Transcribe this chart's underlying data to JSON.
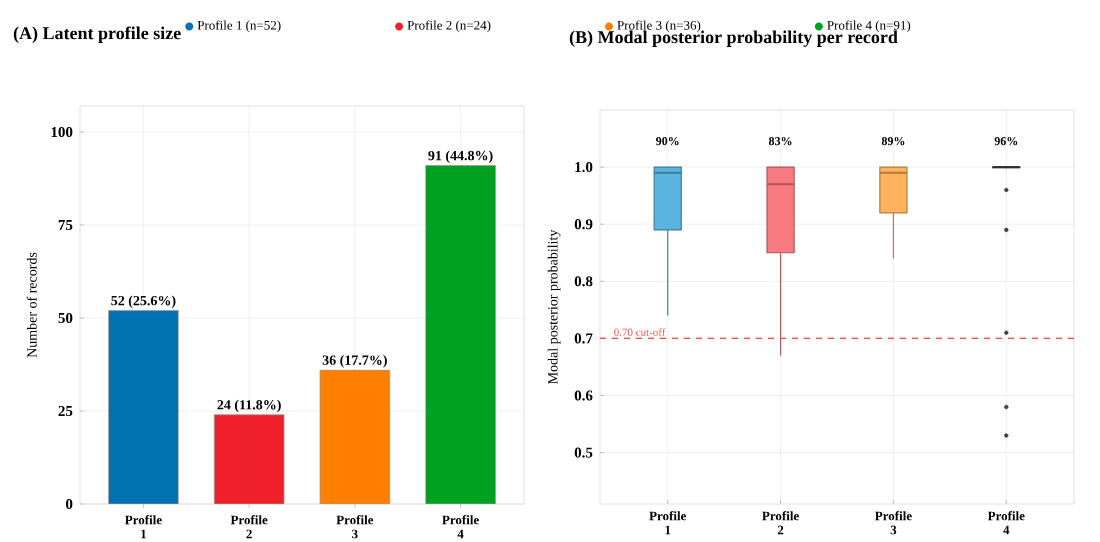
{
  "chart_data": [
    {
      "type": "bar",
      "title": "(A) Latent profile size",
      "ylabel": "Number of records",
      "categories": [
        "Profile 1",
        "Profile 2",
        "Profile 3",
        "Profile 4"
      ],
      "series": [
        {
          "name": "Profile 1 (n=52)",
          "color": "#0072b2",
          "values": [
            52,
            null,
            null,
            null
          ],
          "value_labels": [
            "52 (25.6%)",
            null,
            null,
            null
          ]
        },
        {
          "name": "Profile 2 (n=24)",
          "color": "#f0202a",
          "values": [
            null,
            24,
            null,
            null
          ],
          "value_labels": [
            null,
            "24 (11.8%)",
            null,
            null
          ]
        },
        {
          "name": "Profile 3 (n=36)",
          "color": "#ff8000",
          "values": [
            null,
            null,
            36,
            null
          ],
          "value_labels": [
            null,
            null,
            "36 (17.7%)",
            null
          ]
        },
        {
          "name": "Profile 4 (n=91)",
          "color": "#00a020",
          "values": [
            null,
            null,
            null,
            91
          ],
          "value_labels": [
            null,
            null,
            null,
            "91 (44.8%)"
          ]
        }
      ],
      "ylim": [
        0,
        107
      ],
      "yticks": [
        0,
        25,
        50,
        75,
        100
      ],
      "grid": true,
      "legend": "top"
    },
    {
      "type": "box",
      "title": "(B) Modal posterior probability per record",
      "ylabel": "Modal posterior probability",
      "categories": [
        "Profile 1",
        "Profile 2",
        "Profile 3",
        "Profile 4"
      ],
      "colors": [
        "#5ab4e0",
        "#f77b80",
        "#ffb35c",
        "#404040"
      ],
      "boxes": [
        {
          "low": 0.74,
          "q1": 0.89,
          "median": 0.99,
          "q3": 1.0,
          "high": 1.0
        },
        {
          "low": 0.67,
          "q1": 0.85,
          "median": 0.97,
          "q3": 1.0,
          "high": 1.0
        },
        {
          "low": 0.84,
          "q1": 0.92,
          "median": 0.99,
          "q3": 1.0,
          "high": 1.0
        },
        {
          "low": 0.998,
          "q1": 0.999,
          "median": 1.0,
          "q3": 1.0,
          "high": 1.0,
          "outliers": [
            0.53,
            0.58,
            0.71,
            0.89,
            0.96
          ]
        }
      ],
      "ylim": [
        0.41,
        1.1
      ],
      "yticks": [
        0.5,
        0.6,
        0.7,
        0.8,
        0.9,
        {
          "value": 1.0,
          "label": "1.0"
        }
      ],
      "grid": true,
      "ref_lines": [
        {
          "axis": "y",
          "value": 0.7,
          "label": "0.70 cut-off",
          "color": "#ff5050",
          "line_style": "dashed"
        }
      ],
      "annotations": [
        "90%",
        "83%",
        "89%",
        "96%"
      ]
    }
  ]
}
